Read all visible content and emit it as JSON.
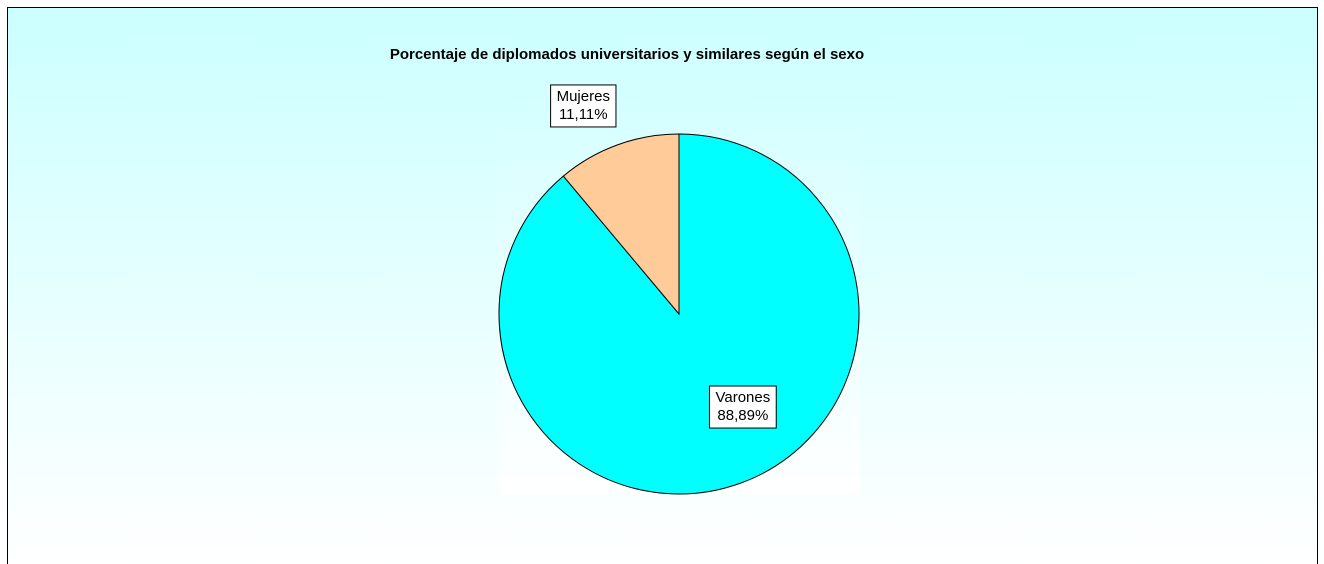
{
  "chart_data": {
    "type": "pie",
    "title": "Porcentaje de diplomados universitarios  y similares según el sexo",
    "categories": [
      "Varones",
      "Mujeres"
    ],
    "values": [
      88.89,
      11.11
    ],
    "value_labels": [
      "88,89%",
      "11,11%"
    ],
    "colors": [
      "#00ffff",
      "#ffcc99"
    ]
  }
}
